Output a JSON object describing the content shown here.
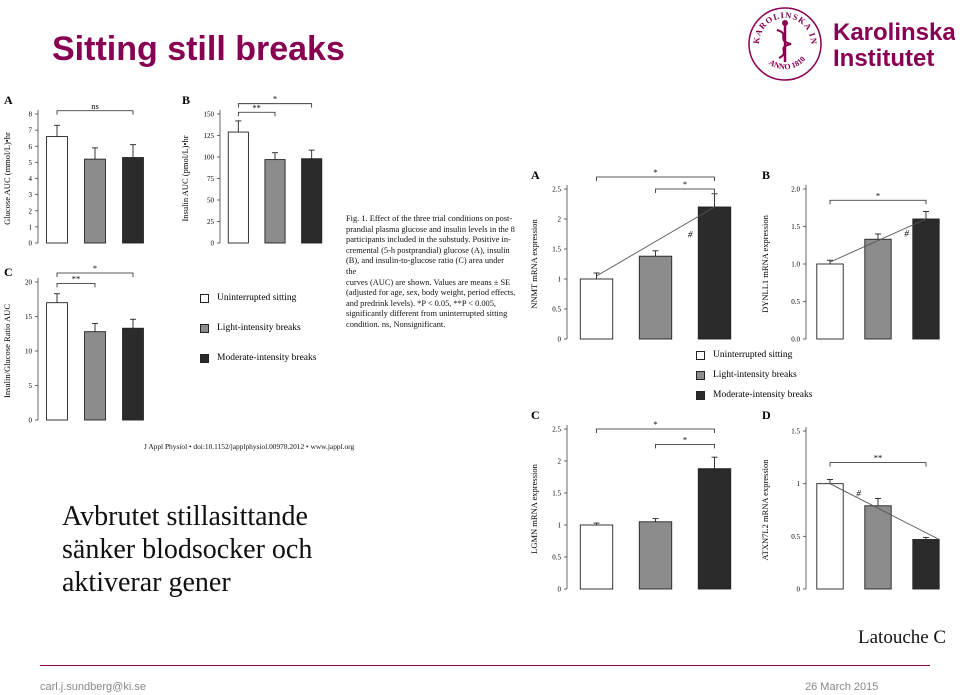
{
  "colors": {
    "brand": "#870052",
    "white_bar": "#ffffff",
    "light_bar": "#8c8c8c",
    "dark_bar": "#2b2b2b"
  },
  "slide": {
    "title": "Sitting still breaks",
    "logo": {
      "name_line1": "Karolinska",
      "name_line2": "Institutet",
      "seal_text": "KAROLINSKA INSTITUTET",
      "seal_year": "ANNO 1810"
    },
    "summary_lines": [
      "Avbrutet stillasittande",
      "sänker blodsocker och",
      "aktiverar gener"
    ],
    "author": "Latouche C",
    "footer": {
      "email": "carl.j.sundberg@ki.se",
      "date": "26 March 2015"
    }
  },
  "caption": {
    "lines": [
      "Fig. 1. Effect of the three trial conditions on post-",
      "prandial plasma glucose and insulin levels in the 8",
      "participants included in the substudy. Positive in-",
      "cremental (5-h postprandial) glucose (A), insulin",
      "(B), and insulin-to-glucose ratio (C) area under the",
      "curves (AUC) are shown. Values are means ± SE",
      "(adjusted for age, sex, body weight, period effects,",
      "and predrink levels). *P < 0.05, **P < 0.005,",
      "significantly different from uninterrupted sitting",
      "condition. ns, Nonsignificant."
    ],
    "journal_ref": "J Appl Physiol • doi:10.1152/japplphysiol.00978.2012 • www.jappl.org"
  },
  "legend": {
    "items": [
      "Uninterrupted sitting",
      "Light-intensity breaks",
      "Moderate-intensity breaks"
    ]
  },
  "chart_data": [
    {
      "id": "left-A",
      "panel_label": "A",
      "type": "bar",
      "categories": [
        "Uninterrupted sitting",
        "Light-intensity breaks",
        "Moderate-intensity breaks"
      ],
      "values": [
        6.6,
        5.2,
        5.3
      ],
      "errors": [
        0.7,
        0.7,
        0.8
      ],
      "ylabel": "Glucose AUC (mmol/L)•hr",
      "ylim": [
        0,
        8
      ],
      "yticks": [
        "0",
        "1",
        "2",
        "3",
        "4",
        "5",
        "6",
        "7",
        "8"
      ],
      "brackets": [
        {
          "from": 0,
          "to": 2,
          "y": 8.2,
          "label": "ns"
        }
      ]
    },
    {
      "id": "left-B",
      "panel_label": "B",
      "type": "bar",
      "categories": [
        "Uninterrupted sitting",
        "Light-intensity breaks",
        "Moderate-intensity breaks"
      ],
      "values": [
        129,
        97,
        98
      ],
      "errors": [
        13,
        8,
        10
      ],
      "ylabel": "Insulin AUC (pmol/L)•hr",
      "ylim": [
        0,
        150
      ],
      "yticks": [
        "0",
        "25",
        "50",
        "75",
        "100",
        "125",
        "150"
      ],
      "brackets": [
        {
          "from": 0,
          "to": 2,
          "y": 162,
          "label": "*"
        },
        {
          "from": 0,
          "to": 1,
          "y": 152,
          "label": "**"
        }
      ]
    },
    {
      "id": "left-C",
      "panel_label": "C",
      "type": "bar",
      "categories": [
        "Uninterrupted sitting",
        "Light-intensity breaks",
        "Moderate-intensity breaks"
      ],
      "values": [
        17,
        12.8,
        13.3
      ],
      "errors": [
        1.3,
        1.2,
        1.3
      ],
      "ylabel": "Insulin/Glucose Ratio AUC",
      "ylim": [
        0,
        20
      ],
      "yticks": [
        "0",
        "5",
        "10",
        "15",
        "20"
      ],
      "brackets": [
        {
          "from": 0,
          "to": 2,
          "y": 21.3,
          "label": "*"
        },
        {
          "from": 0,
          "to": 1,
          "y": 19.8,
          "label": "**"
        }
      ]
    },
    {
      "id": "right-A",
      "panel_label": "A",
      "type": "bar",
      "categories": [
        "Uninterrupted sitting",
        "Light-intensity breaks",
        "Moderate-intensity breaks"
      ],
      "values": [
        1.0,
        1.38,
        2.2
      ],
      "errors": [
        0.1,
        0.09,
        0.22
      ],
      "ylabel": "NNMT mRNA expression",
      "ylim": [
        0,
        2.5
      ],
      "yticks": [
        "0",
        "0.5",
        "1",
        "1.5",
        "2",
        "2.5"
      ],
      "trend": "up",
      "trend_label": "#",
      "brackets": [
        {
          "from": 0,
          "to": 2,
          "y": 2.7,
          "label": "*"
        },
        {
          "from": 1,
          "to": 2,
          "y": 2.5,
          "label": "*"
        }
      ]
    },
    {
      "id": "right-B",
      "panel_label": "B",
      "type": "bar",
      "categories": [
        "Uninterrupted sitting",
        "Light-intensity breaks",
        "Moderate-intensity breaks"
      ],
      "values": [
        1.0,
        1.33,
        1.6
      ],
      "errors": [
        0.05,
        0.07,
        0.1
      ],
      "ylabel": "DYNLL1 mRNA expression",
      "ylim": [
        0,
        2.0
      ],
      "yticks": [
        "0.0",
        "0.5",
        "1.0",
        "1.5",
        "2.0"
      ],
      "trend": "up",
      "trend_label": "#",
      "brackets": [
        {
          "from": 0,
          "to": 2,
          "y": 1.85,
          "label": "*"
        }
      ]
    },
    {
      "id": "right-C",
      "panel_label": "C",
      "type": "bar",
      "categories": [
        "Uninterrupted sitting",
        "Light-intensity breaks",
        "Moderate-intensity breaks"
      ],
      "values": [
        1.0,
        1.05,
        1.88
      ],
      "errors": [
        0.03,
        0.05,
        0.18
      ],
      "ylabel": "LGMN mRNA expression",
      "ylim": [
        0,
        2.5
      ],
      "yticks": [
        "0",
        "0.5",
        "1",
        "1.5",
        "2",
        "2.5"
      ],
      "brackets": [
        {
          "from": 0,
          "to": 2,
          "y": 2.5,
          "label": "*"
        },
        {
          "from": 1,
          "to": 2,
          "y": 2.26,
          "label": "*"
        }
      ]
    },
    {
      "id": "right-D",
      "panel_label": "D",
      "type": "bar",
      "categories": [
        "Uninterrupted sitting",
        "Light-intensity breaks",
        "Moderate-intensity breaks"
      ],
      "values": [
        1.0,
        0.79,
        0.47
      ],
      "errors": [
        0.04,
        0.07,
        0.02
      ],
      "ylabel": "ATXN7L2 mRNA expression",
      "ylim": [
        0,
        1.5
      ],
      "yticks": [
        "0",
        "0.5",
        "1",
        "1.5"
      ],
      "trend": "down",
      "trend_label": "#",
      "brackets": [
        {
          "from": 0,
          "to": 2,
          "y": 1.2,
          "label": "**"
        }
      ]
    }
  ]
}
